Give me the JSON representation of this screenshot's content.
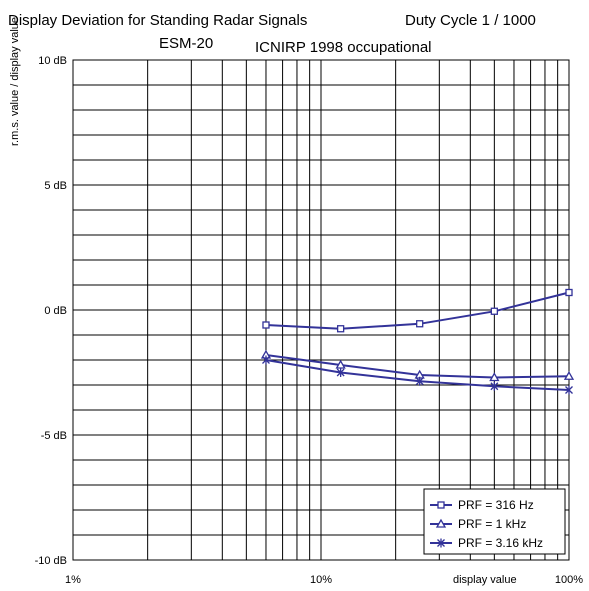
{
  "chart_data": {
    "type": "line",
    "title_main": "Display Deviation for Standing Radar Signals",
    "title_duty": "Duty Cycle 1 / 1000",
    "title_device": "ESM-20",
    "title_standard": "ICNIRP 1998 occupational",
    "xlabel": "display value",
    "ylabel": "r.m.s. value / display value",
    "x_scale": "log",
    "xlim": [
      1,
      100
    ],
    "ylim": [
      -10,
      10
    ],
    "x_tick_labels": [
      {
        "value": 1,
        "label": "1%"
      },
      {
        "value": 10,
        "label": "10%"
      },
      {
        "value": 100,
        "label": "100%"
      }
    ],
    "y_tick_labels": [
      {
        "value": 10,
        "label": "10 dB"
      },
      {
        "value": 5,
        "label": "5 dB"
      },
      {
        "value": 0,
        "label": "0 dB"
      },
      {
        "value": -5,
        "label": "-5 dB"
      },
      {
        "value": -10,
        "label": "-10 dB"
      }
    ],
    "grid": true,
    "legend_position": "bottom-right",
    "series_color": "#333399",
    "series": [
      {
        "name": "PRF = 316 Hz",
        "marker": "square",
        "x": [
          6,
          12,
          25,
          50,
          100
        ],
        "y": [
          -0.6,
          -0.75,
          -0.55,
          -0.05,
          0.7
        ]
      },
      {
        "name": "PRF = 1 kHz",
        "marker": "triangle",
        "x": [
          6,
          12,
          25,
          50,
          100
        ],
        "y": [
          -1.8,
          -2.2,
          -2.6,
          -2.7,
          -2.65
        ]
      },
      {
        "name": "PRF = 3.16 kHz",
        "marker": "star",
        "x": [
          6,
          12,
          25,
          50,
          100
        ],
        "y": [
          -2.0,
          -2.5,
          -2.85,
          -3.05,
          -3.2
        ]
      }
    ]
  }
}
